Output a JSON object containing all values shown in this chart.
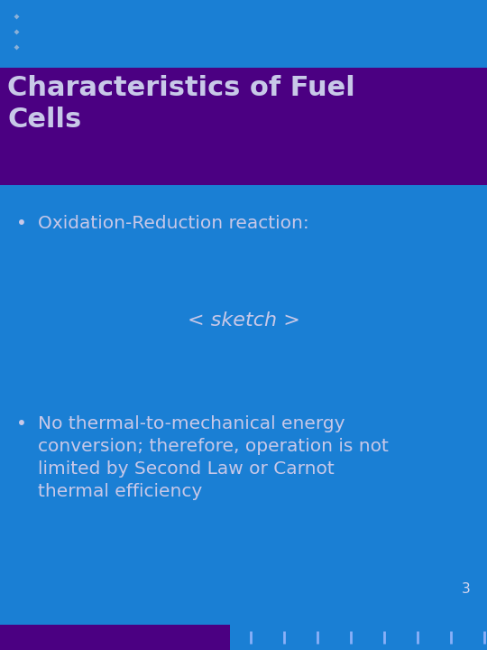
{
  "bg_color": "#1a7fd4",
  "title_bg_color": "#4b0082",
  "title_text": "Characteristics of Fuel\nCells",
  "title_color": "#c8c8e8",
  "bullet_color": "#c8c8e8",
  "bullet1_text": "Oxidation-Reduction reaction:",
  "sketch_text": "< sketch >",
  "sketch_color": "#c8c8e8",
  "bullet2_text": "No thermal-to-mechanical energy\nconversion; therefore, operation is not\nlimited by Second Law or Carnot\nthermal efficiency",
  "page_number": "3",
  "page_num_color": "#d8d8f0",
  "dot_color_top": "#8ab0d8",
  "dot_color_bottom": "#8ab0f8",
  "footer_bar_color": "#4b0082",
  "title_fontsize": 22,
  "bullet_fontsize": 14.5,
  "sketch_fontsize": 16,
  "pagenum_fontsize": 11
}
